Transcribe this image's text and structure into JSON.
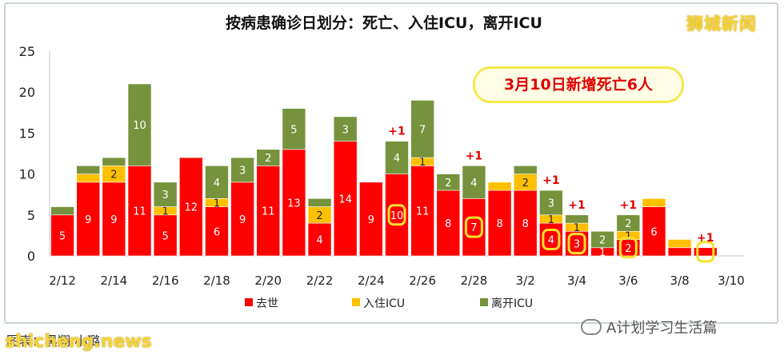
{
  "chart_data": {
    "type": "bar",
    "stacked": true,
    "title": "按病患确诊日划分：死亡、入住ICU，离开ICU",
    "annotation": "3月10日新增死亡6人",
    "ylim": [
      0,
      25
    ],
    "yticks": [
      "0",
      "5",
      "10",
      "15",
      "20",
      "25"
    ],
    "grid": false,
    "legend_position": "bottom",
    "categories": [
      "2/12",
      "2/13",
      "2/14",
      "2/15",
      "2/16",
      "2/17",
      "2/18",
      "2/19",
      "2/20",
      "2/21",
      "2/22",
      "2/23",
      "2/24",
      "2/25",
      "2/26",
      "2/27",
      "2/28",
      "3/1",
      "3/2",
      "3/3",
      "3/4",
      "3/5",
      "3/6",
      "3/7",
      "3/8",
      "3/9",
      "3/10"
    ],
    "xtick_labels": [
      "2/12",
      "2/14",
      "2/16",
      "2/18",
      "2/20",
      "2/22",
      "2/24",
      "2/26",
      "2/28",
      "3/2",
      "3/4",
      "3/6",
      "3/8",
      "3/10"
    ],
    "series": [
      {
        "name": "去世",
        "color": "#ff0000",
        "values": [
          5,
          9,
          9,
          11,
          5,
          12,
          6,
          9,
          11,
          13,
          4,
          14,
          9,
          10,
          11,
          8,
          7,
          8,
          8,
          4,
          3,
          1,
          2,
          6,
          1,
          1,
          0
        ],
        "labels": [
          "5",
          "9",
          "9",
          "11",
          "5",
          "12",
          "6",
          "9",
          "11",
          "13",
          "4",
          "14",
          "9",
          "10",
          "11",
          "8",
          "7",
          "8",
          "8",
          "4",
          "3",
          "1",
          "2",
          "6",
          "",
          "",
          ""
        ]
      },
      {
        "name": "入住ICU",
        "color": "#ffc000",
        "values": [
          0,
          1,
          2,
          0,
          1,
          0,
          1,
          0,
          0,
          0,
          2,
          0,
          0,
          0,
          1,
          0,
          0,
          1,
          2,
          1,
          1,
          0,
          1,
          1,
          1,
          0,
          0
        ],
        "labels": [
          "",
          "",
          "2",
          "",
          "1",
          "",
          "1",
          "",
          "",
          "",
          "2",
          "",
          "",
          "",
          "1",
          "",
          "",
          "",
          "2",
          "1",
          "1",
          "",
          "1",
          "",
          "",
          "",
          ""
        ]
      },
      {
        "name": "离开ICU",
        "color": "#76923c",
        "values": [
          1,
          1,
          1,
          10,
          3,
          0,
          4,
          3,
          2,
          5,
          1,
          3,
          0,
          4,
          7,
          2,
          4,
          0,
          1,
          3,
          1,
          2,
          2,
          0,
          0,
          0,
          0
        ],
        "labels": [
          "",
          "",
          "",
          "10",
          "3",
          "",
          "4",
          "3",
          "2",
          "5",
          "",
          "3",
          "",
          "4",
          "7",
          "2",
          "4",
          "",
          "",
          "3",
          "",
          "2",
          "2",
          "",
          "",
          "",
          ""
        ]
      }
    ],
    "increments": [
      "",
      "",
      "",
      "",
      "",
      "",
      "",
      "",
      "",
      "",
      "",
      "",
      "",
      "+1",
      "",
      "",
      "+1",
      "",
      "",
      "+1",
      "+1",
      "",
      "+1",
      "",
      "",
      "+1",
      ""
    ],
    "circled": [
      "",
      "",
      "",
      "",
      "",
      "",
      "",
      "",
      "",
      "",
      "",
      "",
      "",
      "10",
      "",
      "",
      "7",
      "",
      "",
      "4",
      "3",
      "",
      "2",
      "",
      "",
      "1",
      ""
    ]
  },
  "watermarks": {
    "top_right": "狮城新闻",
    "bottom_left": "shicheng.news",
    "bottom_right": "A计划学习生活篇",
    "source": "图表：黑翔 小璐"
  }
}
